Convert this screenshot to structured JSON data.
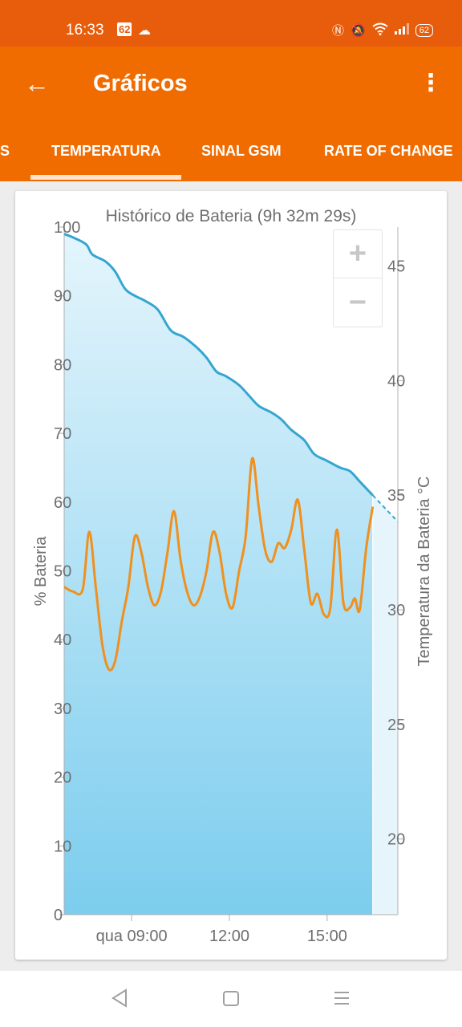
{
  "status_bar": {
    "time": "16:33",
    "badge": "62",
    "battery": "62",
    "cloud_icon": "cloud-icon",
    "right_icons": [
      "nfc-icon",
      "bell-off-icon",
      "wifi-icon",
      "signal-icon"
    ]
  },
  "app_bar": {
    "title": "Gráficos",
    "back_icon": "arrow-left-icon",
    "menu_icon": "more-vert-icon"
  },
  "tabs": [
    {
      "label": "S"
    },
    {
      "label": "TEMPERATURA",
      "selected": true
    },
    {
      "label": "SINAL GSM"
    },
    {
      "label": "RATE OF CHANGE"
    }
  ],
  "chart_data": {
    "type": "area",
    "title": "Histórico de Bateria (9h 32m 29s)",
    "ylabel": "% Bateria",
    "y2label": "Temperatura da Bateria °C",
    "xlim": [
      6.93,
      17.17
    ],
    "ylim": [
      0,
      100
    ],
    "y2lim": [
      16.7,
      46.7
    ],
    "x_ticks": [
      {
        "value": 9,
        "label": "qua 09:00"
      },
      {
        "value": 12,
        "label": "12:00"
      },
      {
        "value": 15,
        "label": "15:00"
      }
    ],
    "y_ticks": [
      0,
      10,
      20,
      30,
      40,
      50,
      60,
      70,
      80,
      90,
      100
    ],
    "y2_ticks": [
      20,
      25,
      30,
      35,
      40,
      45
    ],
    "projection_end_x": 17.17,
    "series": [
      {
        "name": "% Bateria",
        "axis": "left",
        "x": [
          6.93,
          7.2,
          7.6,
          7.8,
          8.2,
          8.5,
          8.8,
          9.1,
          9.4,
          9.8,
          10.2,
          10.6,
          11.0,
          11.3,
          11.6,
          11.9,
          12.3,
          12.6,
          12.9,
          13.3,
          13.6,
          13.9,
          14.3,
          14.6,
          15.0,
          15.4,
          15.7,
          16.0,
          16.2,
          16.4
        ],
        "values": [
          99,
          98.5,
          97.5,
          96,
          95,
          93.5,
          91,
          90,
          89.3,
          88,
          85,
          84,
          82.5,
          81,
          79,
          78.3,
          77,
          75.5,
          74,
          73,
          72,
          70.5,
          69,
          67,
          66,
          65,
          64.5,
          63,
          62,
          61
        ]
      },
      {
        "name": "Temperatura da Bateria °C",
        "axis": "right",
        "x": [
          6.93,
          7.2,
          7.5,
          7.7,
          7.9,
          8.1,
          8.3,
          8.5,
          8.7,
          8.9,
          9.1,
          9.3,
          9.5,
          9.7,
          9.9,
          10.1,
          10.3,
          10.5,
          10.7,
          10.9,
          11.1,
          11.3,
          11.5,
          11.7,
          11.9,
          12.1,
          12.3,
          12.5,
          12.7,
          12.9,
          13.1,
          13.3,
          13.5,
          13.7,
          13.9,
          14.1,
          14.3,
          14.5,
          14.7,
          14.9,
          15.1,
          15.3,
          15.5,
          15.7,
          15.85,
          16.0,
          16.2,
          16.4
        ],
        "values": [
          31,
          30.8,
          30.9,
          33.4,
          31,
          28.5,
          27.4,
          27.8,
          29.5,
          31,
          33.2,
          32.5,
          31,
          30.2,
          30.8,
          32.5,
          34.3,
          32.2,
          30.8,
          30.2,
          30.6,
          31.7,
          33.4,
          32.5,
          30.7,
          30.1,
          31.7,
          33.2,
          36.6,
          34.5,
          32.6,
          32.1,
          32.9,
          32.7,
          33.5,
          34.8,
          32.6,
          30.3,
          30.7,
          29.8,
          30.1,
          33.5,
          30.3,
          30.1,
          30.5,
          30,
          32.7,
          34.5
        ]
      }
    ]
  }
}
